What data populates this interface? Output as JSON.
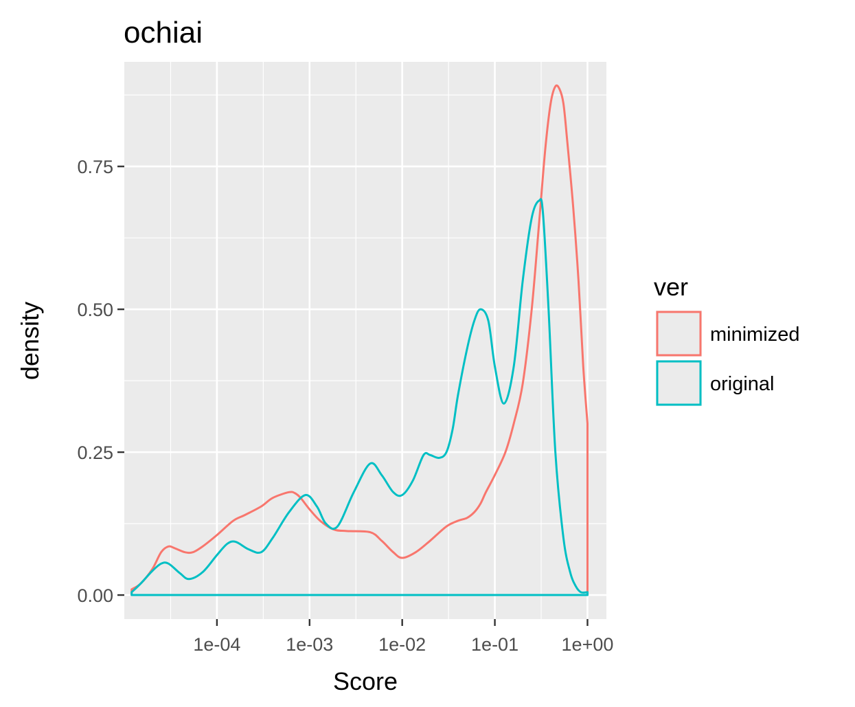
{
  "chart_data": {
    "type": "area",
    "title": "ochiai",
    "xlabel": "Score",
    "ylabel": "density",
    "x_scale": "log10",
    "xlim": [
      1e-05,
      1.6
    ],
    "ylim": [
      -0.042,
      0.933
    ],
    "x_ticks": [
      0.0001,
      0.001,
      0.01,
      0.1,
      1
    ],
    "x_tick_labels": [
      "1e-04",
      "1e-03",
      "1e-02",
      "1e-01",
      "1e+00"
    ],
    "y_ticks": [
      0,
      0.25,
      0.5,
      0.75
    ],
    "y_tick_labels": [
      "0.00",
      "0.25",
      "0.50",
      "0.75"
    ],
    "grid": true,
    "legend": {
      "title": "ver",
      "position": "right"
    },
    "series": [
      {
        "name": "minimized",
        "color": "#F8766D",
        "x": [
          1.2e-05,
          1.5e-05,
          2e-05,
          2.5e-05,
          3e-05,
          3.5e-05,
          4.5e-05,
          5.5e-05,
          7e-05,
          0.0001,
          0.00015,
          0.0002,
          0.0003,
          0.0004,
          0.0006,
          0.0007,
          0.0008,
          0.001,
          0.0013,
          0.0018,
          0.0025,
          0.0045,
          0.006,
          0.008,
          0.01,
          0.014,
          0.02,
          0.03,
          0.04,
          0.05,
          0.06,
          0.07,
          0.08,
          0.1,
          0.13,
          0.16,
          0.2,
          0.25,
          0.3,
          0.35,
          0.4,
          0.45,
          0.5,
          0.55,
          0.6,
          0.7,
          0.8,
          0.9,
          1,
          1
        ],
        "y": [
          0.01,
          0.02,
          0.045,
          0.075,
          0.085,
          0.082,
          0.075,
          0.075,
          0.085,
          0.105,
          0.13,
          0.14,
          0.155,
          0.17,
          0.18,
          0.178,
          0.17,
          0.15,
          0.13,
          0.115,
          0.112,
          0.11,
          0.095,
          0.075,
          0.065,
          0.075,
          0.095,
          0.12,
          0.13,
          0.135,
          0.145,
          0.16,
          0.18,
          0.21,
          0.25,
          0.3,
          0.37,
          0.5,
          0.65,
          0.78,
          0.86,
          0.89,
          0.885,
          0.86,
          0.8,
          0.68,
          0.55,
          0.4,
          0.3,
          0.0
        ]
      },
      {
        "name": "original",
        "color": "#00BFC4",
        "x": [
          1.2e-05,
          1.5e-05,
          2e-05,
          2.5e-05,
          3e-05,
          4e-05,
          5e-05,
          7e-05,
          0.0001,
          0.00013,
          0.00016,
          0.00022,
          0.0003,
          0.0004,
          0.0006,
          0.0009,
          0.0012,
          0.0015,
          0.002,
          0.003,
          0.0045,
          0.006,
          0.008,
          0.01,
          0.013,
          0.017,
          0.02,
          0.025,
          0.03,
          0.035,
          0.04,
          0.05,
          0.06,
          0.07,
          0.085,
          0.1,
          0.125,
          0.16,
          0.2,
          0.25,
          0.3,
          0.33,
          0.38,
          0.45,
          0.55,
          0.65,
          0.75,
          0.85,
          1,
          1
        ],
        "y": [
          0.005,
          0.02,
          0.042,
          0.055,
          0.055,
          0.038,
          0.028,
          0.04,
          0.07,
          0.09,
          0.093,
          0.08,
          0.075,
          0.1,
          0.145,
          0.175,
          0.155,
          0.125,
          0.12,
          0.18,
          0.23,
          0.21,
          0.18,
          0.175,
          0.2,
          0.245,
          0.245,
          0.24,
          0.25,
          0.29,
          0.35,
          0.43,
          0.48,
          0.5,
          0.48,
          0.4,
          0.335,
          0.4,
          0.55,
          0.66,
          0.69,
          0.67,
          0.5,
          0.25,
          0.1,
          0.04,
          0.015,
          0.005,
          0.005,
          0.0
        ]
      }
    ]
  }
}
